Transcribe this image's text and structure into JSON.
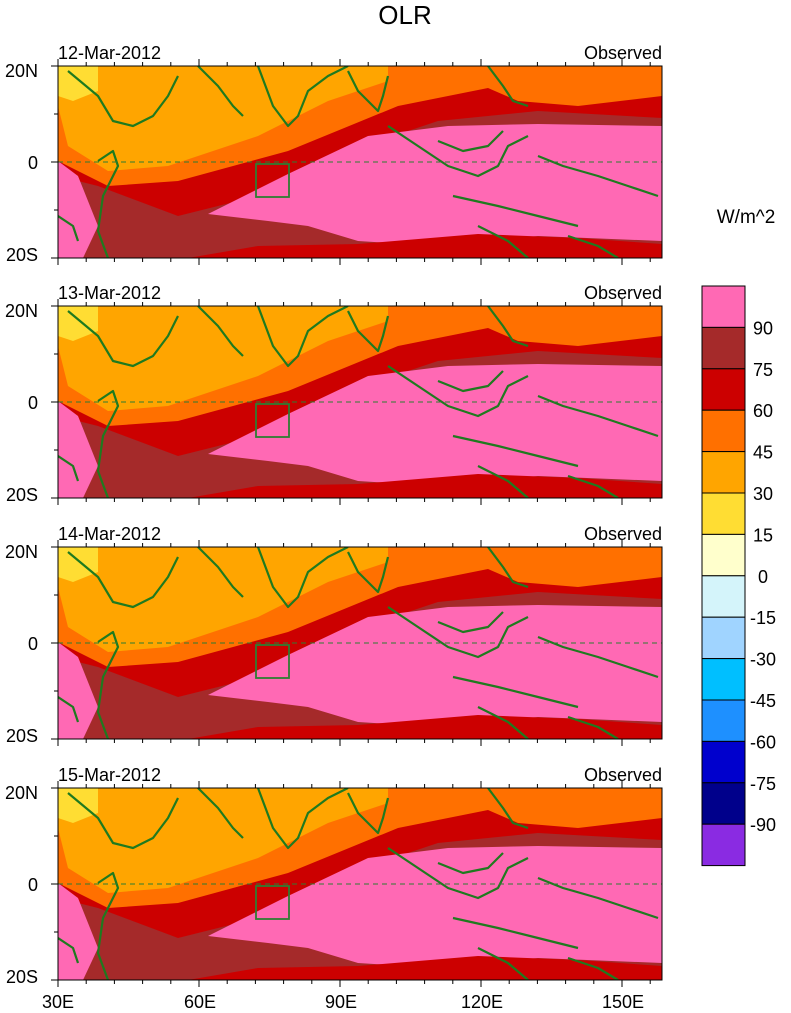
{
  "title": "OLR",
  "units_label": "W/m^2",
  "panel_tag": "Observed",
  "panels": [
    {
      "date": "12-Mar-2012"
    },
    {
      "date": "13-Mar-2012"
    },
    {
      "date": "14-Mar-2012"
    },
    {
      "date": "15-Mar-2012"
    }
  ],
  "lat_labels": [
    "20N",
    "0",
    "20S"
  ],
  "lon_labels": [
    "30E",
    "60E",
    "90E",
    "120E",
    "150E"
  ],
  "colorbar": {
    "levels": [
      "90",
      "75",
      "60",
      "45",
      "30",
      "15",
      "0",
      "-15",
      "-30",
      "-45",
      "-60",
      "-75",
      "-90"
    ],
    "colors": [
      "#ff69b4",
      "#a52a2a",
      "#cc0000",
      "#ff7000",
      "#ffa500",
      "#ffdd33",
      "#ffffcc",
      "#d4f4fa",
      "#a0d4ff",
      "#00bfff",
      "#1e90ff",
      "#0000cd",
      "#00008b",
      "#8a2be2"
    ]
  },
  "colors": {
    "coastline": "#1f7a1f",
    "equator": "#2e7d32",
    "box": "#2e7d32"
  }
}
